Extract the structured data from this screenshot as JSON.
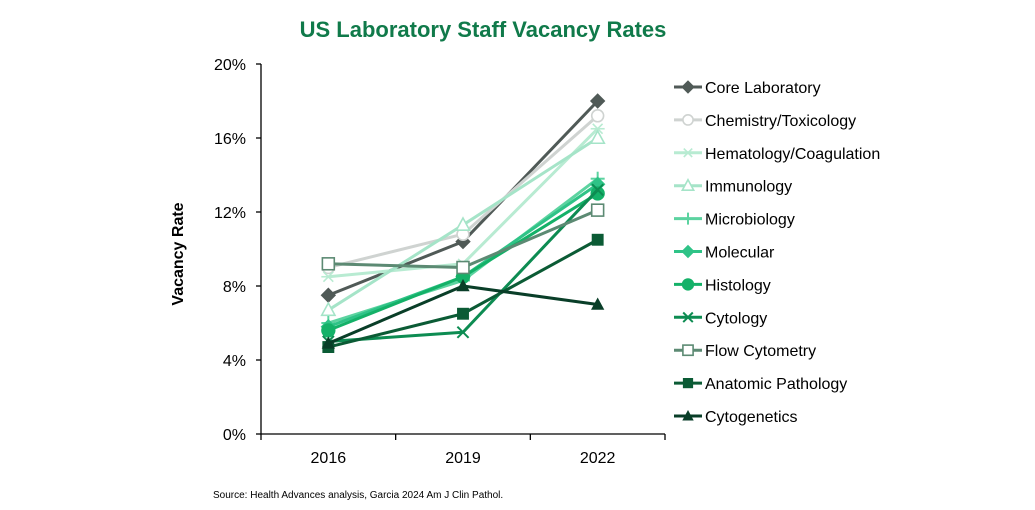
{
  "chart_data": {
    "type": "line",
    "title": "US Laboratory Staff Vacancy Rates",
    "xlabel": "",
    "ylabel": "Vacancy Rate",
    "categories": [
      "2016",
      "2019",
      "2022"
    ],
    "ylim": [
      0,
      20
    ],
    "yticks": [
      "0%",
      "4%",
      "8%",
      "12%",
      "16%",
      "20%"
    ],
    "title_color": "#107a4a",
    "grid": false,
    "legend_position": "right",
    "source": "Source:  Health Advances analysis, Garcia 2024 Am J Clin Pathol.",
    "series": [
      {
        "name": "Core Laboratory",
        "values": [
          7.5,
          10.4,
          18.0
        ],
        "color": "#505a57",
        "marker": "diamond"
      },
      {
        "name": "Chemistry/Toxicology",
        "values": [
          9.0,
          10.8,
          17.2
        ],
        "color": "#cfd3d1",
        "marker": "circle-open"
      },
      {
        "name": "Hematology/Coagulation",
        "values": [
          8.5,
          9.2,
          16.5
        ],
        "color": "#b8ebd2",
        "marker": "asterisk"
      },
      {
        "name": "Immunology",
        "values": [
          6.7,
          11.3,
          16.0
        ],
        "color": "#a5e4c8",
        "marker": "triangle-open"
      },
      {
        "name": "Microbiology",
        "values": [
          6.0,
          8.3,
          13.8
        ],
        "color": "#5cd3a0",
        "marker": "plus"
      },
      {
        "name": "Molecular",
        "values": [
          5.8,
          8.5,
          13.5
        ],
        "color": "#2fc387",
        "marker": "diamond"
      },
      {
        "name": "Histology",
        "values": [
          5.6,
          8.5,
          13.0
        ],
        "color": "#14b168",
        "marker": "circle"
      },
      {
        "name": "Cytology",
        "values": [
          5.0,
          5.5,
          13.2
        ],
        "color": "#0d8c52",
        "marker": "x"
      },
      {
        "name": "Flow Cytometry",
        "values": [
          9.2,
          9.0,
          12.1
        ],
        "color": "#5c8a73",
        "marker": "square-open"
      },
      {
        "name": "Anatomic Pathology",
        "values": [
          4.7,
          6.5,
          10.5
        ],
        "color": "#0b5b35",
        "marker": "square"
      },
      {
        "name": "Cytogenetics",
        "values": [
          4.9,
          8.0,
          7.0
        ],
        "color": "#093e28",
        "marker": "triangle"
      }
    ]
  }
}
